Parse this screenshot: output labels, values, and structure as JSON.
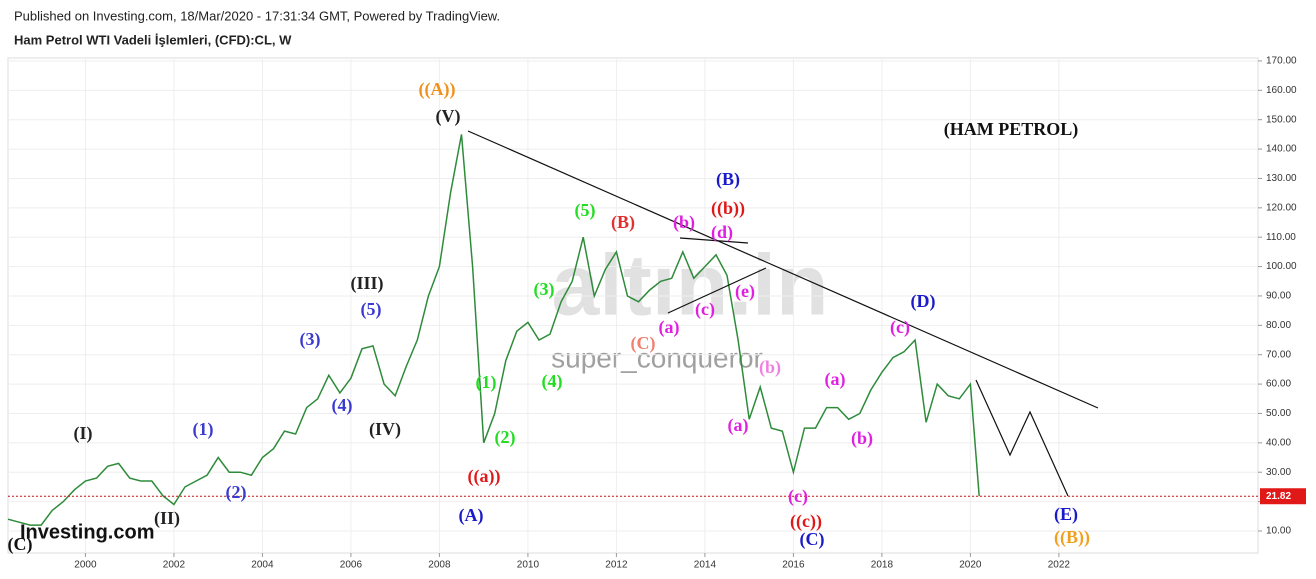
{
  "header": {
    "published": "Published on Investing.com, 18/Mar/2020 - 17:31:34 GMT, Powered by TradingView.",
    "instrument": "Ham Petrol WTI Vadeli İşlemleri, (CFD):CL, W"
  },
  "watermarks": [
    "altın.in",
    "super_conqueror"
  ],
  "logo": "Investing.com",
  "chart_data": {
    "type": "line",
    "color": "#2e8b3a",
    "x": [
      1998.25,
      1998.5,
      1998.75,
      1999,
      1999.25,
      1999.5,
      1999.75,
      2000,
      2000.25,
      2000.5,
      2000.75,
      2001,
      2001.25,
      2001.5,
      2001.75,
      2002,
      2002.25,
      2002.5,
      2002.75,
      2003,
      2003.25,
      2003.5,
      2003.75,
      2004,
      2004.25,
      2004.5,
      2004.75,
      2005,
      2005.25,
      2005.5,
      2005.75,
      2006,
      2006.25,
      2006.5,
      2006.75,
      2007,
      2007.25,
      2007.5,
      2007.75,
      2008,
      2008.25,
      2008.5,
      2008.75,
      2009,
      2009.25,
      2009.5,
      2009.75,
      2010,
      2010.25,
      2010.5,
      2010.75,
      2011,
      2011.25,
      2011.5,
      2011.75,
      2012,
      2012.25,
      2012.5,
      2012.75,
      2013,
      2013.25,
      2013.5,
      2013.75,
      2014,
      2014.25,
      2014.5,
      2014.75,
      2015,
      2015.25,
      2015.5,
      2015.75,
      2016,
      2016.25,
      2016.5,
      2016.75,
      2017,
      2017.25,
      2017.5,
      2017.75,
      2018,
      2018.25,
      2018.5,
      2018.75,
      2019,
      2019.25,
      2019.5,
      2019.75,
      2020,
      2020.2
    ],
    "values": [
      14,
      13,
      12,
      12,
      17,
      20,
      24,
      27,
      28,
      32,
      33,
      28,
      27,
      27,
      22,
      19,
      25,
      27,
      29,
      35,
      30,
      30,
      29,
      35,
      38,
      44,
      43,
      52,
      55,
      63,
      57,
      62,
      72,
      73,
      60,
      56,
      66,
      75,
      90,
      100,
      125,
      145,
      100,
      40,
      50,
      68,
      78,
      81,
      75,
      77,
      88,
      95,
      110,
      90,
      99,
      105,
      90,
      88,
      92,
      95,
      96,
      105,
      96,
      100,
      104,
      97,
      75,
      48,
      59,
      45,
      44,
      30,
      45,
      45,
      52,
      52,
      48,
      50,
      58,
      64,
      69,
      71,
      75,
      47,
      60,
      56,
      55,
      60,
      21.82
    ],
    "last_price": 21.82,
    "xlim": [
      1998.25,
      2026.5
    ],
    "ylim": [
      2.5,
      171
    ],
    "xticks": [
      2000,
      2002,
      2004,
      2006,
      2008,
      2010,
      2012,
      2014,
      2016,
      2018,
      2020,
      2022
    ],
    "yticks": [
      {
        "value": 10,
        "label": "10.00"
      },
      {
        "value": 20,
        "label": "20.00"
      },
      {
        "value": 30,
        "label": "30.00"
      },
      {
        "value": 40,
        "label": "40.00"
      },
      {
        "value": 50,
        "label": "50.00"
      },
      {
        "value": 60,
        "label": "60.00"
      },
      {
        "value": 70,
        "label": "70.00"
      },
      {
        "value": 80,
        "label": "80.00"
      },
      {
        "value": 90,
        "label": "90.00"
      },
      {
        "value": 100,
        "label": "100.00"
      },
      {
        "value": 110,
        "label": "110.00"
      },
      {
        "value": 120,
        "label": "120.00"
      },
      {
        "value": 130,
        "label": "130.00"
      },
      {
        "value": 140,
        "label": "140.00"
      },
      {
        "value": 150,
        "label": "150.00"
      },
      {
        "value": 160,
        "label": "160.00"
      },
      {
        "value": 170,
        "label": "170.00"
      }
    ],
    "grid": true,
    "annotations": [
      {
        "text": "((A))",
        "color": "#f0901a"
      },
      {
        "text": "(V)",
        "color": "#222"
      },
      {
        "text": "(III)",
        "color": "#222"
      },
      {
        "text": "(5)",
        "color": "#3a3ad0"
      },
      {
        "text": "(3)",
        "color": "#3a3ad0"
      },
      {
        "text": "(4)",
        "color": "#3a3ad0"
      },
      {
        "text": "(IV)",
        "color": "#222"
      },
      {
        "text": "(I)",
        "color": "#222"
      },
      {
        "text": "(1)",
        "color": "#3a3ad0"
      },
      {
        "text": "(2)",
        "color": "#3a3ad0"
      },
      {
        "text": "(II)",
        "color": "#222"
      },
      {
        "text": "(C)",
        "color": "#111"
      },
      {
        "text": "((a))",
        "color": "#e01818"
      },
      {
        "text": "(A)",
        "color": "#1a1ac8"
      },
      {
        "text": "(1)",
        "color": "#22dd22"
      },
      {
        "text": "(2)",
        "color": "#22dd22"
      },
      {
        "text": "(3)",
        "color": "#22dd22"
      },
      {
        "text": "(4)",
        "color": "#22dd22"
      },
      {
        "text": "(5)",
        "color": "#22dd22"
      },
      {
        "text": "(B)",
        "color": "#e03030"
      },
      {
        "text": "(C)",
        "color": "#f08070"
      },
      {
        "text": "(b)",
        "color": "#e020e0"
      },
      {
        "text": "(B)",
        "color": "#1a1ac8"
      },
      {
        "text": "((b))",
        "color": "#e01818"
      },
      {
        "text": "(d)",
        "color": "#e020e0"
      },
      {
        "text": "(a)",
        "color": "#e020e0"
      },
      {
        "text": "(c)",
        "color": "#e020e0"
      },
      {
        "text": "(e)",
        "color": "#e020e0"
      },
      {
        "text": "(b)",
        "color": "#f080e0"
      },
      {
        "text": "(a)",
        "color": "#e020e0"
      },
      {
        "text": "(c)",
        "color": "#e020e0"
      },
      {
        "text": "((c))",
        "color": "#e01818"
      },
      {
        "text": "(C)",
        "color": "#1a1ac8"
      },
      {
        "text": "(a)",
        "color": "#e020e0"
      },
      {
        "text": "(b)",
        "color": "#e020e0"
      },
      {
        "text": "(c)",
        "color": "#e020e0"
      },
      {
        "text": "(D)",
        "color": "#1a1ac8"
      },
      {
        "text": "(E)",
        "color": "#1a1ac8"
      },
      {
        "text": "((B))",
        "color": "#f0a020"
      },
      {
        "text": "(HAM PETROL)",
        "color": "#111"
      }
    ]
  }
}
